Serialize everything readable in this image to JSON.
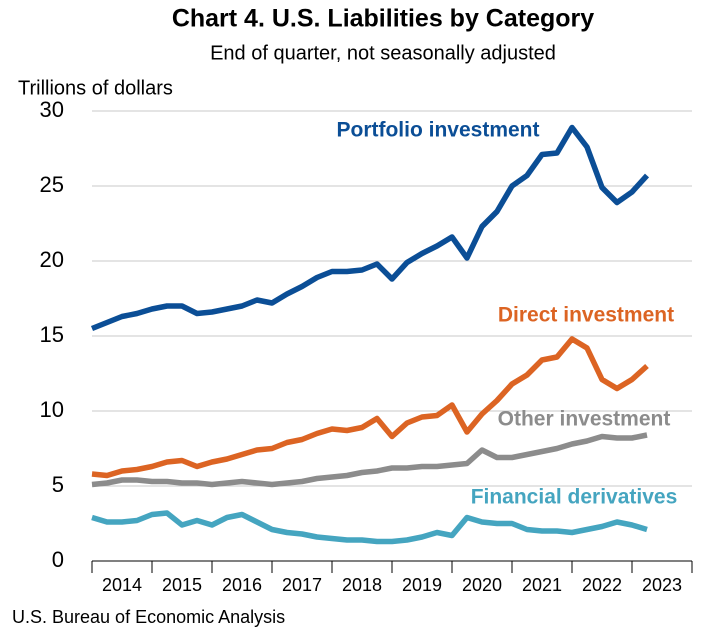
{
  "chart_data": {
    "type": "line",
    "title": "Chart 4. U.S. Liabilities by Category",
    "subtitle": "End of quarter, not seasonally adjusted",
    "y_label": "Trillions of dollars",
    "source": "U.S. Bureau of Economic Analysis",
    "x": [
      2014.0,
      2014.25,
      2014.5,
      2014.75,
      2015.0,
      2015.25,
      2015.5,
      2015.75,
      2016.0,
      2016.25,
      2016.5,
      2016.75,
      2017.0,
      2017.25,
      2017.5,
      2017.75,
      2018.0,
      2018.25,
      2018.5,
      2018.75,
      2019.0,
      2019.25,
      2019.5,
      2019.75,
      2020.0,
      2020.25,
      2020.5,
      2020.75,
      2021.0,
      2021.25,
      2021.5,
      2021.75,
      2022.0,
      2022.25,
      2022.5,
      2022.75,
      2023.0,
      2023.25
    ],
    "xlim": [
      2014,
      2024
    ],
    "xtick_marks": [
      2014,
      2015,
      2016,
      2017,
      2018,
      2019,
      2020,
      2021,
      2022,
      2023,
      2024
    ],
    "xticks": [
      {
        "value": 2014.5,
        "label": "2014"
      },
      {
        "value": 2015.5,
        "label": "2015"
      },
      {
        "value": 2016.5,
        "label": "2016"
      },
      {
        "value": 2017.5,
        "label": "2017"
      },
      {
        "value": 2018.5,
        "label": "2018"
      },
      {
        "value": 2019.5,
        "label": "2019"
      },
      {
        "value": 2020.5,
        "label": "2020"
      },
      {
        "value": 2021.5,
        "label": "2021"
      },
      {
        "value": 2022.5,
        "label": "2022"
      },
      {
        "value": 2023.5,
        "label": "2023"
      }
    ],
    "ylim": [
      0,
      30
    ],
    "yticks": [
      0,
      5,
      10,
      15,
      20,
      25,
      30
    ],
    "grid": true,
    "series": [
      {
        "name": "Portfolio investment",
        "color": "#0b4e96",
        "values": [
          15.5,
          15.9,
          16.3,
          16.5,
          16.8,
          17.0,
          17.0,
          16.5,
          16.6,
          16.8,
          17.0,
          17.4,
          17.2,
          17.8,
          18.3,
          18.9,
          19.3,
          19.3,
          19.4,
          19.8,
          18.8,
          19.9,
          20.5,
          21.0,
          21.6,
          20.2,
          22.3,
          23.3,
          25.0,
          25.7,
          27.1,
          27.2,
          28.9,
          27.6,
          24.9,
          23.9,
          24.6,
          25.7
        ]
      },
      {
        "name": "Direct investment",
        "color": "#dc6423",
        "values": [
          5.8,
          5.7,
          6.0,
          6.1,
          6.3,
          6.6,
          6.7,
          6.3,
          6.6,
          6.8,
          7.1,
          7.4,
          7.5,
          7.9,
          8.1,
          8.5,
          8.8,
          8.7,
          8.9,
          9.5,
          8.3,
          9.2,
          9.6,
          9.7,
          10.4,
          8.6,
          9.8,
          10.7,
          11.8,
          12.4,
          13.4,
          13.6,
          14.8,
          14.2,
          12.1,
          11.5,
          12.1,
          13.0
        ]
      },
      {
        "name": "Other investment",
        "color": "#8c8c8c",
        "values": [
          5.1,
          5.2,
          5.4,
          5.4,
          5.3,
          5.3,
          5.2,
          5.2,
          5.1,
          5.2,
          5.3,
          5.2,
          5.1,
          5.2,
          5.3,
          5.5,
          5.6,
          5.7,
          5.9,
          6.0,
          6.2,
          6.2,
          6.3,
          6.3,
          6.4,
          6.5,
          7.4,
          6.9,
          6.9,
          7.1,
          7.3,
          7.5,
          7.8,
          8.0,
          8.3,
          8.2,
          8.2,
          8.4
        ]
      },
      {
        "name": "Financial derivatives",
        "color": "#45a5c0",
        "values": [
          2.9,
          2.6,
          2.6,
          2.7,
          3.1,
          3.2,
          2.4,
          2.7,
          2.4,
          2.9,
          3.1,
          2.6,
          2.1,
          1.9,
          1.8,
          1.6,
          1.5,
          1.4,
          1.4,
          1.3,
          1.3,
          1.4,
          1.6,
          1.9,
          1.7,
          2.9,
          2.6,
          2.5,
          2.5,
          2.1,
          2.0,
          2.0,
          1.9,
          2.1,
          2.3,
          2.6,
          2.4,
          2.1
        ]
      }
    ]
  }
}
